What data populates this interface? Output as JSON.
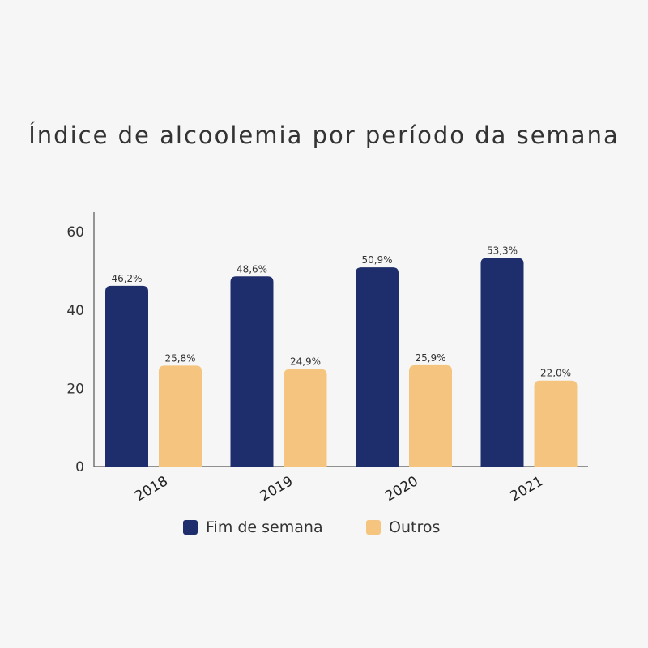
{
  "chart_data": {
    "type": "bar",
    "title": "Índice de alcoolemia por período da semana",
    "categories": [
      "2018",
      "2019",
      "2020",
      "2021"
    ],
    "series": [
      {
        "name": "Fim de semana",
        "color": "#1e2d6b",
        "values": [
          46.2,
          48.6,
          50.9,
          53.3
        ],
        "labels": [
          "46,2%",
          "48,6%",
          "50,9%",
          "53,3%"
        ]
      },
      {
        "name": "Outros",
        "color": "#f5c57f",
        "values": [
          25.8,
          24.9,
          25.9,
          22.0
        ],
        "labels": [
          "25,8%",
          "24,9%",
          "25,9%",
          "22,0%"
        ]
      }
    ],
    "ylim": [
      0,
      65
    ],
    "yticks": [
      0,
      20,
      40,
      60
    ],
    "ytick_labels": [
      "0",
      "20",
      "40",
      "60"
    ],
    "grid": false,
    "legend_position": "bottom"
  }
}
